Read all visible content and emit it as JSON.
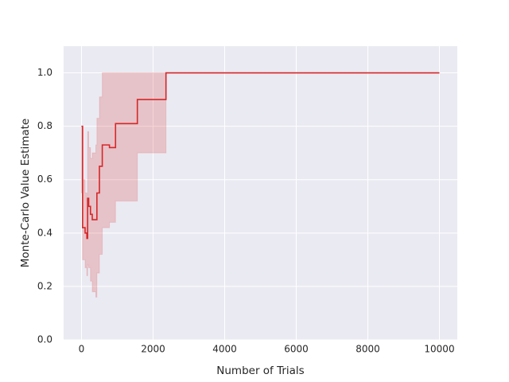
{
  "chart_data": {
    "type": "line",
    "step": "post",
    "xlabel": "Number of Trials",
    "ylabel": "Monte-Carlo Value Estimate",
    "x": [
      0,
      30,
      100,
      150,
      170,
      200,
      250,
      300,
      400,
      430,
      500,
      580,
      780,
      950,
      1560,
      2360,
      10000
    ],
    "series": [
      {
        "color": "#d62728",
        "values": [
          0.8,
          0.42,
          0.4,
          0.38,
          0.53,
          0.5,
          0.47,
          0.45,
          0.45,
          0.55,
          0.65,
          0.73,
          0.72,
          0.81,
          0.9,
          1.0,
          1.0
        ],
        "lower": [
          0.55,
          0.3,
          0.27,
          0.24,
          0.28,
          0.27,
          0.22,
          0.18,
          0.16,
          0.25,
          0.32,
          0.42,
          0.44,
          0.52,
          0.7,
          1.0,
          1.0
        ],
        "upper": [
          0.8,
          0.6,
          0.55,
          0.52,
          0.78,
          0.72,
          0.68,
          0.7,
          0.73,
          0.83,
          0.91,
          1.0,
          1.0,
          1.0,
          1.0,
          1.0,
          1.0
        ]
      }
    ],
    "xlim": [
      -500,
      10500
    ],
    "ylim": [
      0,
      1.1
    ],
    "xticks": [
      0,
      2000,
      4000,
      6000,
      8000,
      10000
    ],
    "yticks": [
      {
        "value": 0,
        "label": "0.0"
      },
      {
        "value": 0.2,
        "label": "0.2"
      },
      {
        "value": 0.4,
        "label": "0.4"
      },
      {
        "value": 0.6,
        "label": "0.6"
      },
      {
        "value": 0.8,
        "label": "0.8"
      },
      {
        "value": 1,
        "label": "1.0"
      }
    ],
    "grid": true
  }
}
